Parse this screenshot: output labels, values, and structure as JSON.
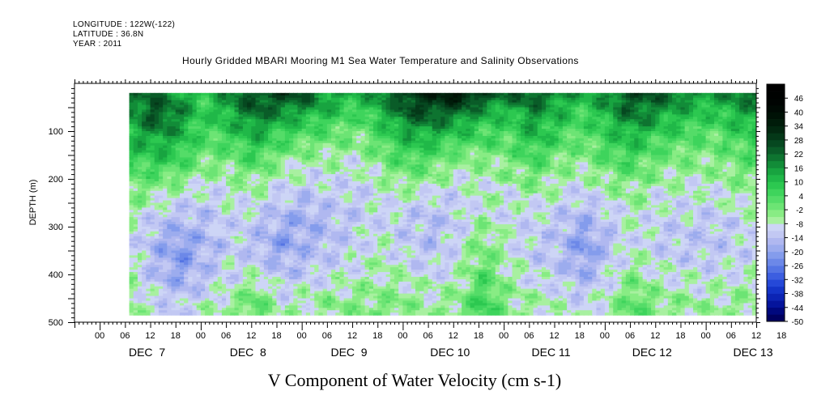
{
  "header": {
    "longitude": "LONGITUDE : 122W(-122)",
    "latitude": "LATITUDE : 36.8N",
    "year": "YEAR : 2011",
    "title": "Hourly Gridded MBARI Mooring M1 Sea Water Temperature and Salinity Observations"
  },
  "chart_data": {
    "type": "heatmap",
    "title": "Hourly Gridded MBARI Mooring M1 Sea Water Temperature and Salinity Observations",
    "xlabel": "V Component of Water Velocity (cm s-1)",
    "ylabel": "DEPTH (m)",
    "x_range_hours": [
      -6,
      156
    ],
    "data_x_range_hours": [
      7,
      156
    ],
    "y_range": [
      500,
      0
    ],
    "data_depth_range": [
      20,
      485
    ],
    "y_ticks": [
      100,
      200,
      300,
      400,
      500
    ],
    "y_tick_labels": [
      "100",
      "200",
      "300",
      "400",
      "500"
    ],
    "x_tick_labels": [
      "00",
      "06",
      "12",
      "18",
      "00",
      "06",
      "12",
      "18",
      "00",
      "06",
      "12",
      "18",
      "00",
      "06",
      "12",
      "18",
      "00",
      "06",
      "12",
      "18",
      "00",
      "06",
      "12",
      "18",
      "00",
      "06",
      "12",
      "18"
    ],
    "day_labels": [
      "DEC  7",
      "DEC  8",
      "DEC  9",
      "DEC 10",
      "DEC 11",
      "DEC 12",
      "DEC 13"
    ],
    "colorbar": {
      "levels": [
        "46",
        "40",
        "34",
        "28",
        "22",
        "16",
        "10",
        "4",
        "-2",
        "-8",
        "-14",
        "-20",
        "-26",
        "-32",
        "-38",
        "-44",
        "-50"
      ],
      "min": -50,
      "max": 52,
      "step": 3,
      "colors": [
        "#000060",
        "#00087e",
        "#05149c",
        "#0c24b4",
        "#1434c8",
        "#2548d8",
        "#3c5ee0",
        "#5474e4",
        "#6c88e8",
        "#849cec",
        "#9cacee",
        "#b0b8f0",
        "#c2c8f3",
        "#cdd5f6",
        "#a8f0a0",
        "#88ec84",
        "#6ce474",
        "#54dc68",
        "#3ed45c",
        "#2cc850",
        "#20b848",
        "#18a440",
        "#128c38",
        "#0e7430",
        "#0a5c28",
        "#064820",
        "#043818",
        "#022810",
        "#001c0a",
        "#001206",
        "#000a04",
        "#000402",
        "#000201",
        "#000000"
      ]
    },
    "grid": false,
    "legend": "right-colorbar",
    "series": [
      {
        "depth": 20,
        "values": [
          18,
          22,
          14,
          8,
          20,
          26,
          30,
          24,
          16,
          12,
          20,
          30,
          34,
          38,
          30,
          22,
          26,
          18,
          12,
          20,
          28,
          24,
          16,
          22
        ]
      },
      {
        "depth": 60,
        "values": [
          16,
          26,
          18,
          6,
          14,
          22,
          18,
          14,
          10,
          4,
          12,
          24,
          26,
          22,
          14,
          10,
          18,
          12,
          6,
          14,
          22,
          16,
          8,
          16
        ]
      },
      {
        "depth": 100,
        "values": [
          12,
          18,
          14,
          4,
          8,
          14,
          8,
          4,
          2,
          -2,
          6,
          14,
          14,
          10,
          6,
          4,
          12,
          6,
          2,
          8,
          14,
          8,
          2,
          10
        ]
      },
      {
        "depth": 160,
        "values": [
          6,
          8,
          6,
          -2,
          -2,
          4,
          -4,
          -6,
          -6,
          -8,
          -2,
          4,
          2,
          -4,
          -4,
          -2,
          4,
          -2,
          -4,
          2,
          4,
          -2,
          -4,
          2
        ]
      },
      {
        "depth": 220,
        "values": [
          -2,
          -4,
          -6,
          -10,
          -8,
          -6,
          -10,
          -12,
          -10,
          -12,
          -8,
          -6,
          -8,
          -10,
          -8,
          -8,
          -4,
          -8,
          -10,
          -6,
          -4,
          -8,
          -8,
          -4
        ]
      },
      {
        "depth": 280,
        "values": [
          -6,
          -12,
          -14,
          -14,
          -10,
          -12,
          -16,
          -18,
          -14,
          -12,
          -10,
          -12,
          -14,
          -12,
          -6,
          -10,
          -10,
          -12,
          -16,
          -12,
          -8,
          -10,
          -12,
          -8
        ]
      },
      {
        "depth": 340,
        "values": [
          -8,
          -16,
          -22,
          -16,
          -12,
          -14,
          -20,
          -16,
          -14,
          -10,
          -8,
          -12,
          -14,
          -10,
          -2,
          -8,
          -12,
          -14,
          -22,
          -14,
          -8,
          -12,
          -14,
          -10
        ]
      },
      {
        "depth": 400,
        "values": [
          -6,
          -14,
          -20,
          -14,
          -10,
          -8,
          -14,
          -12,
          -10,
          -8,
          -6,
          -8,
          -10,
          -8,
          2,
          -6,
          -10,
          -12,
          -18,
          -10,
          -4,
          -8,
          -10,
          -8
        ]
      },
      {
        "depth": 460,
        "values": [
          -4,
          -10,
          -12,
          -8,
          -6,
          2,
          -8,
          -6,
          -4,
          -4,
          -2,
          -4,
          -6,
          -4,
          6,
          -4,
          -6,
          -8,
          -10,
          -6,
          2,
          -4,
          -6,
          -4
        ]
      }
    ],
    "series_x_hours": [
      7,
      13,
      19,
      25,
      31,
      37,
      43,
      49,
      55,
      61,
      67,
      73,
      79,
      85,
      91,
      97,
      103,
      109,
      115,
      121,
      127,
      133,
      145,
      156
    ]
  }
}
